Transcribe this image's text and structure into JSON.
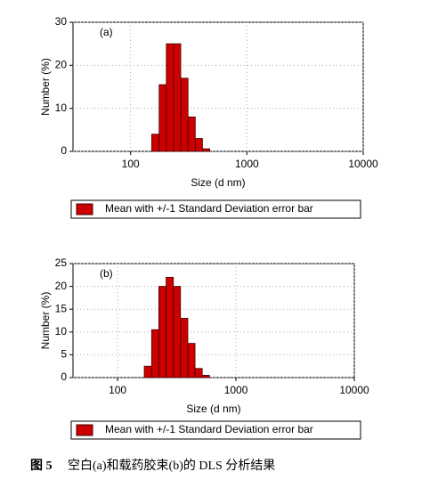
{
  "chart_data": [
    {
      "type": "histogram",
      "panel": "(a)",
      "xlabel": "Size (d nm)",
      "ylabel": "Number (%)",
      "log_x": true,
      "grid": true,
      "legend": "bottom",
      "bins": [
        152,
        176,
        203,
        234,
        270,
        312,
        360,
        415,
        479
      ],
      "series": [
        {
          "name": "Mean with +/-1 Standard Deviation error bar",
          "color": "#cc0000",
          "values": [
            4,
            15.5,
            25,
            25,
            17,
            8,
            3,
            0.6
          ]
        }
      ],
      "xlim": [
        32,
        10000
      ],
      "xticks": [
        100,
        1000,
        10000
      ],
      "ylim": [
        0,
        30
      ],
      "yticks": [
        0,
        10,
        20,
        30
      ]
    },
    {
      "type": "histogram",
      "panel": "(b)",
      "xlabel": "Size (d nm)",
      "ylabel": "Number (%)",
      "log_x": true,
      "grid": true,
      "legend": "bottom",
      "bins": [
        168,
        194,
        223,
        257,
        296,
        340,
        392,
        451,
        519,
        597
      ],
      "series": [
        {
          "name": "Mean with +/-1 Standard Deviation error bar",
          "color": "#cc0000",
          "values": [
            2.5,
            10.5,
            20,
            22,
            20,
            13,
            7.5,
            2,
            0.5
          ]
        }
      ],
      "xlim": [
        42,
        10000
      ],
      "xticks": [
        100,
        1000,
        10000
      ],
      "ylim": [
        0,
        25
      ],
      "yticks": [
        0,
        5,
        10,
        15,
        20,
        25
      ]
    }
  ],
  "caption": {
    "label": "图 5",
    "text": "空白(a)和载药胶束(b)的 DLS 分析结果"
  }
}
